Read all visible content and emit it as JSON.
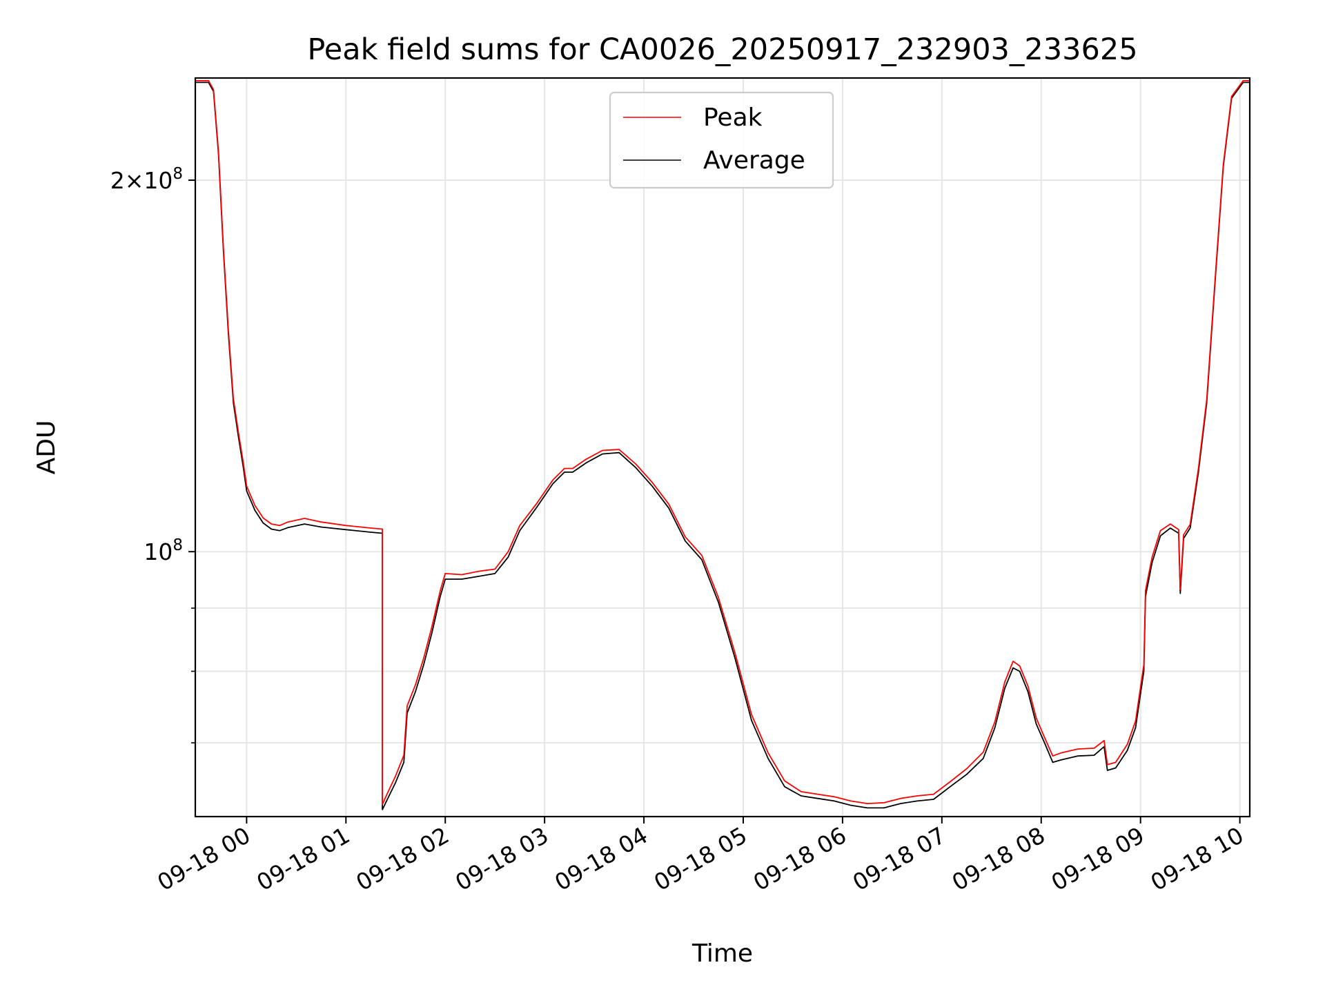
{
  "chart_data": {
    "type": "line",
    "title": "Peak field sums for CA0026_20250917_232903_233625",
    "xlabel": "Time",
    "ylabel": "ADU",
    "x_ticks": [
      "09-18 00",
      "09-18 01",
      "09-18 02",
      "09-18 03",
      "09-18 04",
      "09-18 05",
      "09-18 06",
      "09-18 07",
      "09-18 08",
      "09-18 09",
      "09-18 10"
    ],
    "xlim": [
      "2025-09-17 23:29",
      "2025-09-18 10:06"
    ],
    "yscale": "log",
    "ylim": [
      61000000,
      242000000
    ],
    "y_ticks": [
      {
        "value": 100000000,
        "base": "10",
        "exp": "8",
        "coef": ""
      },
      {
        "value": 200000000,
        "base": "10",
        "exp": "8",
        "coef": "2×"
      }
    ],
    "y_minor": [
      60000000,
      70000000,
      80000000,
      90000000
    ],
    "grid": true,
    "legend": {
      "placement": "top-center",
      "entries": [
        "Peak",
        "Average"
      ]
    },
    "colors": {
      "Peak": "#ff0000",
      "Average": "#000000"
    },
    "series": [
      {
        "name": "Average",
        "points": [
          [
            "2025-09-17 23:29",
            240000000
          ],
          [
            "2025-09-17 23:37",
            240000000
          ],
          [
            "2025-09-17 23:40",
            236000000
          ],
          [
            "2025-09-17 23:43",
            210000000
          ],
          [
            "2025-09-17 23:46",
            175000000
          ],
          [
            "2025-09-17 23:49",
            150000000
          ],
          [
            "2025-09-17 23:52",
            132000000
          ],
          [
            "2025-09-17 23:55",
            124000000
          ],
          [
            "2025-09-17 23:58",
            117000000
          ],
          [
            "2025-09-18 00:00",
            112000000
          ],
          [
            "2025-09-18 00:05",
            108000000
          ],
          [
            "2025-09-18 00:10",
            105500000
          ],
          [
            "2025-09-18 00:15",
            104300000
          ],
          [
            "2025-09-18 00:20",
            104000000
          ],
          [
            "2025-09-18 00:25",
            104600000
          ],
          [
            "2025-09-18 00:35",
            105300000
          ],
          [
            "2025-09-18 00:45",
            104700000
          ],
          [
            "2025-09-18 01:00",
            104200000
          ],
          [
            "2025-09-18 01:15",
            103700000
          ],
          [
            "2025-09-18 01:22",
            103500000
          ],
          [
            "2025-09-18 01:22",
            61800000
          ],
          [
            "2025-09-18 01:25",
            63000000
          ],
          [
            "2025-09-18 01:30",
            65000000
          ],
          [
            "2025-09-18 01:35",
            67500000
          ],
          [
            "2025-09-18 01:37",
            74000000
          ],
          [
            "2025-09-18 01:42",
            77000000
          ],
          [
            "2025-09-18 01:47",
            81000000
          ],
          [
            "2025-09-18 01:52",
            86000000
          ],
          [
            "2025-09-18 01:57",
            92000000
          ],
          [
            "2025-09-18 02:00",
            95000000
          ],
          [
            "2025-09-18 02:10",
            95000000
          ],
          [
            "2025-09-18 02:20",
            95500000
          ],
          [
            "2025-09-18 02:30",
            96000000
          ],
          [
            "2025-09-18 02:38",
            99000000
          ],
          [
            "2025-09-18 02:45",
            104000000
          ],
          [
            "2025-09-18 02:55",
            108500000
          ],
          [
            "2025-09-18 03:05",
            113500000
          ],
          [
            "2025-09-18 03:12",
            116000000
          ],
          [
            "2025-09-18 03:17",
            116000000
          ],
          [
            "2025-09-18 03:25",
            118000000
          ],
          [
            "2025-09-18 03:35",
            120000000
          ],
          [
            "2025-09-18 03:45",
            120300000
          ],
          [
            "2025-09-18 03:55",
            117000000
          ],
          [
            "2025-09-18 04:05",
            113000000
          ],
          [
            "2025-09-18 04:15",
            108500000
          ],
          [
            "2025-09-18 04:25",
            102000000
          ],
          [
            "2025-09-18 04:35",
            98500000
          ],
          [
            "2025-09-18 04:45",
            91000000
          ],
          [
            "2025-09-18 04:55",
            82000000
          ],
          [
            "2025-09-18 05:05",
            73000000
          ],
          [
            "2025-09-18 05:15",
            68000000
          ],
          [
            "2025-09-18 05:25",
            64500000
          ],
          [
            "2025-09-18 05:35",
            63400000
          ],
          [
            "2025-09-18 05:45",
            63100000
          ],
          [
            "2025-09-18 05:55",
            62800000
          ],
          [
            "2025-09-18 06:05",
            62300000
          ],
          [
            "2025-09-18 06:15",
            62000000
          ],
          [
            "2025-09-18 06:25",
            62000000
          ],
          [
            "2025-09-18 06:35",
            62500000
          ],
          [
            "2025-09-18 06:45",
            62800000
          ],
          [
            "2025-09-18 06:55",
            63000000
          ],
          [
            "2025-09-18 07:05",
            64500000
          ],
          [
            "2025-09-18 07:15",
            66000000
          ],
          [
            "2025-09-18 07:25",
            68000000
          ],
          [
            "2025-09-18 07:32",
            72000000
          ],
          [
            "2025-09-18 07:38",
            77500000
          ],
          [
            "2025-09-18 07:43",
            80500000
          ],
          [
            "2025-09-18 07:47",
            80000000
          ],
          [
            "2025-09-18 07:52",
            77000000
          ],
          [
            "2025-09-18 07:57",
            72500000
          ],
          [
            "2025-09-18 08:02",
            70000000
          ],
          [
            "2025-09-18 08:07",
            67500000
          ],
          [
            "2025-09-18 08:12",
            67800000
          ],
          [
            "2025-09-18 08:22",
            68300000
          ],
          [
            "2025-09-18 08:32",
            68400000
          ],
          [
            "2025-09-18 08:38",
            69500000
          ],
          [
            "2025-09-18 08:40",
            66500000
          ],
          [
            "2025-09-18 08:45",
            66800000
          ],
          [
            "2025-09-18 08:52",
            69000000
          ],
          [
            "2025-09-18 08:57",
            72000000
          ],
          [
            "2025-09-18 09:02",
            80000000
          ],
          [
            "2025-09-18 09:03",
            92000000
          ],
          [
            "2025-09-18 09:07",
            98000000
          ],
          [
            "2025-09-18 09:12",
            103000000
          ],
          [
            "2025-09-18 09:18",
            104500000
          ],
          [
            "2025-09-18 09:23",
            103500000
          ],
          [
            "2025-09-18 09:24",
            92500000
          ],
          [
            "2025-09-18 09:26",
            102500000
          ],
          [
            "2025-09-18 09:30",
            104500000
          ],
          [
            "2025-09-18 09:35",
            116000000
          ],
          [
            "2025-09-18 09:40",
            132000000
          ],
          [
            "2025-09-18 09:45",
            165000000
          ],
          [
            "2025-09-18 09:50",
            205000000
          ],
          [
            "2025-09-18 09:55",
            233000000
          ],
          [
            "2025-09-18 10:02",
            240000000
          ],
          [
            "2025-09-18 10:06",
            240000000
          ]
        ]
      },
      {
        "name": "Peak",
        "points": [
          [
            "2025-09-17 23:29",
            240800000
          ],
          [
            "2025-09-17 23:37",
            240800000
          ],
          [
            "2025-09-17 23:40",
            236800000
          ],
          [
            "2025-09-17 23:43",
            211000000
          ],
          [
            "2025-09-17 23:46",
            176000000
          ],
          [
            "2025-09-17 23:49",
            151000000
          ],
          [
            "2025-09-17 23:52",
            133000000
          ],
          [
            "2025-09-17 23:55",
            125000000
          ],
          [
            "2025-09-17 23:58",
            118000000
          ],
          [
            "2025-09-18 00:00",
            113000000
          ],
          [
            "2025-09-18 00:05",
            109000000
          ],
          [
            "2025-09-18 00:10",
            106500000
          ],
          [
            "2025-09-18 00:15",
            105300000
          ],
          [
            "2025-09-18 00:20",
            105000000
          ],
          [
            "2025-09-18 00:25",
            105700000
          ],
          [
            "2025-09-18 00:35",
            106400000
          ],
          [
            "2025-09-18 00:45",
            105700000
          ],
          [
            "2025-09-18 01:00",
            105000000
          ],
          [
            "2025-09-18 01:15",
            104500000
          ],
          [
            "2025-09-18 01:22",
            104300000
          ],
          [
            "2025-09-18 01:22",
            62400000
          ],
          [
            "2025-09-18 01:25",
            63700000
          ],
          [
            "2025-09-18 01:30",
            65800000
          ],
          [
            "2025-09-18 01:35",
            68400000
          ],
          [
            "2025-09-18 01:37",
            75000000
          ],
          [
            "2025-09-18 01:42",
            78000000
          ],
          [
            "2025-09-18 01:47",
            82000000
          ],
          [
            "2025-09-18 01:52",
            87000000
          ],
          [
            "2025-09-18 01:57",
            93000000
          ],
          [
            "2025-09-18 02:00",
            96000000
          ],
          [
            "2025-09-18 02:10",
            95800000
          ],
          [
            "2025-09-18 02:20",
            96400000
          ],
          [
            "2025-09-18 02:30",
            96800000
          ],
          [
            "2025-09-18 02:38",
            100000000
          ],
          [
            "2025-09-18 02:45",
            105000000
          ],
          [
            "2025-09-18 02:55",
            109300000
          ],
          [
            "2025-09-18 03:05",
            114300000
          ],
          [
            "2025-09-18 03:12",
            116800000
          ],
          [
            "2025-09-18 03:17",
            116800000
          ],
          [
            "2025-09-18 03:25",
            118800000
          ],
          [
            "2025-09-18 03:35",
            120800000
          ],
          [
            "2025-09-18 03:45",
            121000000
          ],
          [
            "2025-09-18 03:55",
            117800000
          ],
          [
            "2025-09-18 04:05",
            113800000
          ],
          [
            "2025-09-18 04:15",
            109300000
          ],
          [
            "2025-09-18 04:25",
            102800000
          ],
          [
            "2025-09-18 04:35",
            99300000
          ],
          [
            "2025-09-18 04:45",
            91800000
          ],
          [
            "2025-09-18 04:55",
            82800000
          ],
          [
            "2025-09-18 05:05",
            73800000
          ],
          [
            "2025-09-18 05:15",
            68700000
          ],
          [
            "2025-09-18 05:25",
            65200000
          ],
          [
            "2025-09-18 05:35",
            63900000
          ],
          [
            "2025-09-18 05:45",
            63600000
          ],
          [
            "2025-09-18 05:55",
            63300000
          ],
          [
            "2025-09-18 06:05",
            62800000
          ],
          [
            "2025-09-18 06:15",
            62500000
          ],
          [
            "2025-09-18 06:25",
            62600000
          ],
          [
            "2025-09-18 06:35",
            63100000
          ],
          [
            "2025-09-18 06:45",
            63400000
          ],
          [
            "2025-09-18 06:55",
            63600000
          ],
          [
            "2025-09-18 07:05",
            65100000
          ],
          [
            "2025-09-18 07:15",
            66700000
          ],
          [
            "2025-09-18 07:25",
            68800000
          ],
          [
            "2025-09-18 07:32",
            72800000
          ],
          [
            "2025-09-18 07:38",
            78400000
          ],
          [
            "2025-09-18 07:43",
            81500000
          ],
          [
            "2025-09-18 07:47",
            80800000
          ],
          [
            "2025-09-18 07:52",
            77800000
          ],
          [
            "2025-09-18 07:57",
            73300000
          ],
          [
            "2025-09-18 08:02",
            70700000
          ],
          [
            "2025-09-18 08:07",
            68300000
          ],
          [
            "2025-09-18 08:12",
            68700000
          ],
          [
            "2025-09-18 08:22",
            69200000
          ],
          [
            "2025-09-18 08:32",
            69300000
          ],
          [
            "2025-09-18 08:38",
            70300000
          ],
          [
            "2025-09-18 08:40",
            67200000
          ],
          [
            "2025-09-18 08:45",
            67500000
          ],
          [
            "2025-09-18 08:52",
            69800000
          ],
          [
            "2025-09-18 08:57",
            72900000
          ],
          [
            "2025-09-18 09:02",
            81000000
          ],
          [
            "2025-09-18 09:03",
            93000000
          ],
          [
            "2025-09-18 09:07",
            99000000
          ],
          [
            "2025-09-18 09:12",
            104000000
          ],
          [
            "2025-09-18 09:18",
            105300000
          ],
          [
            "2025-09-18 09:23",
            104200000
          ],
          [
            "2025-09-18 09:24",
            93200000
          ],
          [
            "2025-09-18 09:26",
            103200000
          ],
          [
            "2025-09-18 09:30",
            105200000
          ],
          [
            "2025-09-18 09:35",
            116800000
          ],
          [
            "2025-09-18 09:40",
            132800000
          ],
          [
            "2025-09-18 09:45",
            165800000
          ],
          [
            "2025-09-18 09:50",
            205800000
          ],
          [
            "2025-09-18 09:55",
            233800000
          ],
          [
            "2025-09-18 10:02",
            240800000
          ],
          [
            "2025-09-18 10:06",
            240800000
          ]
        ]
      }
    ]
  }
}
